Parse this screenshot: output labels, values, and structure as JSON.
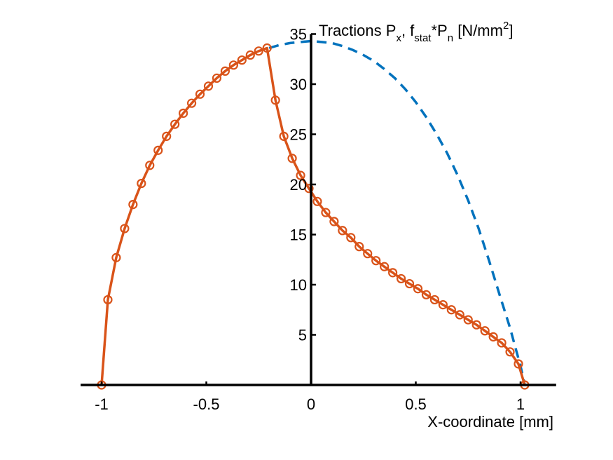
{
  "chart_data": {
    "type": "line",
    "ylabel": {
      "base": "Tractions P",
      "sub1": "x",
      "mid1": ", f",
      "sub2": "stat",
      "mid2": "*P",
      "sub3": "n",
      "mid3": " [N/mm",
      "sup": "2",
      "end": "]"
    },
    "xlabel": "X-coordinate [mm]",
    "xlim": [
      -1.1,
      1.17
    ],
    "ylim": [
      0,
      35
    ],
    "x_ticks": [
      {
        "value": -1,
        "label": "-1"
      },
      {
        "value": -0.5,
        "label": "-0.5"
      },
      {
        "value": 0,
        "label": "0"
      },
      {
        "value": 0.5,
        "label": "0.5"
      },
      {
        "value": 1,
        "label": "1"
      }
    ],
    "y_ticks": [
      {
        "value": 5,
        "label": "5"
      },
      {
        "value": 10,
        "label": "10"
      },
      {
        "value": 15,
        "label": "15"
      },
      {
        "value": 20,
        "label": "20"
      },
      {
        "value": 25,
        "label": "25"
      },
      {
        "value": 30,
        "label": "30"
      },
      {
        "value": 35,
        "label": "35"
      }
    ],
    "series": [
      {
        "style": "dashed",
        "color": "#0072BD",
        "x": [
          -0.2,
          -0.15,
          -0.1,
          -0.05,
          0.0,
          0.05,
          0.1,
          0.15,
          0.2,
          0.25,
          0.3,
          0.35,
          0.4,
          0.45,
          0.5,
          0.55,
          0.6,
          0.65,
          0.7,
          0.75,
          0.8,
          0.85,
          0.9,
          0.95,
          0.98,
          1.0,
          1.02
        ],
        "y": [
          33.6,
          33.9,
          34.1,
          34.2,
          34.3,
          34.2,
          34.1,
          33.8,
          33.4,
          32.9,
          32.3,
          31.5,
          30.6,
          29.5,
          28.2,
          26.7,
          25.0,
          23.1,
          20.9,
          18.4,
          15.6,
          12.4,
          9.0,
          5.7,
          3.4,
          1.9,
          0.0
        ]
      },
      {
        "style": "solid-circle",
        "color": "#D95319",
        "x": [
          -1.0,
          -0.97,
          -0.93,
          -0.89,
          -0.85,
          -0.81,
          -0.77,
          -0.73,
          -0.69,
          -0.65,
          -0.61,
          -0.57,
          -0.53,
          -0.49,
          -0.45,
          -0.41,
          -0.37,
          -0.33,
          -0.29,
          -0.25,
          -0.21,
          -0.17,
          -0.13,
          -0.09,
          -0.05,
          -0.01,
          0.03,
          0.07,
          0.11,
          0.15,
          0.19,
          0.23,
          0.27,
          0.31,
          0.35,
          0.39,
          0.43,
          0.47,
          0.51,
          0.55,
          0.59,
          0.63,
          0.67,
          0.71,
          0.75,
          0.79,
          0.83,
          0.87,
          0.91,
          0.95,
          0.99,
          1.02
        ],
        "y": [
          0.0,
          8.5,
          12.7,
          15.6,
          18.0,
          20.1,
          21.9,
          23.4,
          24.8,
          26.0,
          27.1,
          28.1,
          29.0,
          29.8,
          30.6,
          31.3,
          31.9,
          32.4,
          32.9,
          33.3,
          33.6,
          28.4,
          24.8,
          22.6,
          20.9,
          19.6,
          18.3,
          17.2,
          16.3,
          15.4,
          14.7,
          13.8,
          13.1,
          12.4,
          11.8,
          11.2,
          10.6,
          10.1,
          9.6,
          9.0,
          8.5,
          8.0,
          7.5,
          7.0,
          6.5,
          6.0,
          5.4,
          4.8,
          4.2,
          3.3,
          2.1,
          0.0
        ]
      }
    ]
  }
}
